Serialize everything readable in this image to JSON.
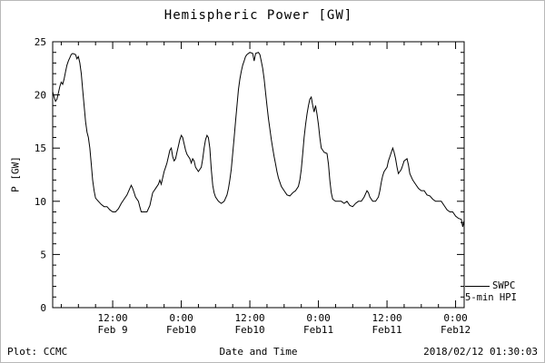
{
  "footer": {
    "left": "Plot: CCMC",
    "right": "2018/02/12 01:30:03"
  },
  "chart_data": {
    "type": "line",
    "title": "Hemispheric Power [GW]",
    "xlabel": "Date and Time",
    "ylabel": "P [GW]",
    "ylim": [
      0,
      25
    ],
    "yticks": [
      0,
      5,
      10,
      15,
      20,
      25
    ],
    "xlim_hours": [
      0,
      72
    ],
    "x_axis_note": "hours since 2018-02-09 01:30",
    "xticks": [
      {
        "hours": 10.5,
        "line1": "12:00",
        "line2": "Feb 9"
      },
      {
        "hours": 22.5,
        "line1": "0:00",
        "line2": "Feb10"
      },
      {
        "hours": 34.5,
        "line1": "12:00",
        "line2": "Feb10"
      },
      {
        "hours": 46.5,
        "line1": "0:00",
        "line2": "Feb11"
      },
      {
        "hours": 58.5,
        "line1": "12:00",
        "line2": "Feb11"
      },
      {
        "hours": 70.5,
        "line1": "0:00",
        "line2": "Feb12"
      }
    ],
    "legend": {
      "line1": "SWPC",
      "line2": "5-min HPI"
    },
    "grid": false,
    "series": [
      {
        "name": "SWPC 5-min HPI",
        "color": "#000000",
        "points": [
          [
            0,
            20.3
          ],
          [
            0.25,
            19.8
          ],
          [
            0.5,
            19.4
          ],
          [
            0.75,
            19.6
          ],
          [
            1,
            20.2
          ],
          [
            1.25,
            20.8
          ],
          [
            1.5,
            21.2
          ],
          [
            1.75,
            21.0
          ],
          [
            2,
            21.5
          ],
          [
            2.25,
            22.2
          ],
          [
            2.5,
            22.8
          ],
          [
            2.75,
            23.2
          ],
          [
            3,
            23.5
          ],
          [
            3.25,
            23.8
          ],
          [
            3.5,
            23.9
          ],
          [
            4,
            23.8
          ],
          [
            4.25,
            23.4
          ],
          [
            4.5,
            23.6
          ],
          [
            4.75,
            23.0
          ],
          [
            5,
            22.0
          ],
          [
            5.25,
            20.5
          ],
          [
            5.5,
            19.0
          ],
          [
            5.75,
            17.5
          ],
          [
            6,
            16.5
          ],
          [
            6.25,
            16.0
          ],
          [
            6.5,
            15.0
          ],
          [
            6.75,
            13.5
          ],
          [
            7,
            12.0
          ],
          [
            7.25,
            11.0
          ],
          [
            7.5,
            10.3
          ],
          [
            8,
            10.0
          ],
          [
            8.5,
            9.7
          ],
          [
            9,
            9.5
          ],
          [
            9.5,
            9.5
          ],
          [
            10,
            9.2
          ],
          [
            10.5,
            9.0
          ],
          [
            11,
            9.0
          ],
          [
            11.5,
            9.3
          ],
          [
            12,
            9.8
          ],
          [
            12.5,
            10.2
          ],
          [
            13,
            10.6
          ],
          [
            13.5,
            11.2
          ],
          [
            13.75,
            11.5
          ],
          [
            14,
            11.2
          ],
          [
            14.25,
            10.8
          ],
          [
            14.5,
            10.4
          ],
          [
            15,
            10.0
          ],
          [
            15.25,
            9.5
          ],
          [
            15.5,
            9.0
          ],
          [
            16,
            9.0
          ],
          [
            16.5,
            9.0
          ],
          [
            17,
            9.6
          ],
          [
            17.25,
            10.2
          ],
          [
            17.5,
            10.8
          ],
          [
            18,
            11.2
          ],
          [
            18.5,
            11.6
          ],
          [
            18.75,
            12.0
          ],
          [
            19,
            11.6
          ],
          [
            19.25,
            12.2
          ],
          [
            19.5,
            12.8
          ],
          [
            19.75,
            13.2
          ],
          [
            20,
            13.6
          ],
          [
            20.25,
            14.2
          ],
          [
            20.5,
            14.8
          ],
          [
            20.75,
            15.0
          ],
          [
            21,
            14.2
          ],
          [
            21.25,
            13.8
          ],
          [
            21.5,
            14.0
          ],
          [
            21.75,
            14.6
          ],
          [
            22,
            15.2
          ],
          [
            22.25,
            15.8
          ],
          [
            22.5,
            16.2
          ],
          [
            22.75,
            16.0
          ],
          [
            23,
            15.4
          ],
          [
            23.25,
            14.8
          ],
          [
            23.5,
            14.4
          ],
          [
            24,
            14.0
          ],
          [
            24.25,
            13.6
          ],
          [
            24.5,
            14.0
          ],
          [
            24.75,
            13.8
          ],
          [
            25,
            13.2
          ],
          [
            25.5,
            12.8
          ],
          [
            26,
            13.2
          ],
          [
            26.25,
            14.0
          ],
          [
            26.5,
            15.0
          ],
          [
            26.75,
            15.8
          ],
          [
            27,
            16.2
          ],
          [
            27.25,
            16.0
          ],
          [
            27.5,
            15.0
          ],
          [
            27.75,
            13.0
          ],
          [
            28,
            11.5
          ],
          [
            28.25,
            10.8
          ],
          [
            28.5,
            10.4
          ],
          [
            29,
            10.0
          ],
          [
            29.5,
            9.8
          ],
          [
            30,
            10.0
          ],
          [
            30.5,
            10.6
          ],
          [
            30.75,
            11.2
          ],
          [
            31,
            12.0
          ],
          [
            31.25,
            13.0
          ],
          [
            31.5,
            14.5
          ],
          [
            31.75,
            16.0
          ],
          [
            32,
            17.5
          ],
          [
            32.25,
            19.0
          ],
          [
            32.5,
            20.5
          ],
          [
            32.75,
            21.5
          ],
          [
            33,
            22.2
          ],
          [
            33.25,
            22.8
          ],
          [
            33.5,
            23.2
          ],
          [
            33.75,
            23.6
          ],
          [
            34,
            23.8
          ],
          [
            34.5,
            24.0
          ],
          [
            35,
            23.9
          ],
          [
            35.25,
            23.2
          ],
          [
            35.5,
            23.9
          ],
          [
            36,
            24.0
          ],
          [
            36.25,
            23.8
          ],
          [
            36.5,
            23.2
          ],
          [
            36.75,
            22.5
          ],
          [
            37,
            21.5
          ],
          [
            37.25,
            20.2
          ],
          [
            37.5,
            19.0
          ],
          [
            37.75,
            17.8
          ],
          [
            38,
            16.8
          ],
          [
            38.25,
            15.8
          ],
          [
            38.5,
            15.0
          ],
          [
            38.75,
            14.2
          ],
          [
            39,
            13.5
          ],
          [
            39.25,
            12.8
          ],
          [
            39.5,
            12.2
          ],
          [
            39.75,
            11.8
          ],
          [
            40,
            11.4
          ],
          [
            40.5,
            11.0
          ],
          [
            41,
            10.6
          ],
          [
            41.5,
            10.5
          ],
          [
            42,
            10.8
          ],
          [
            42.5,
            11.0
          ],
          [
            43,
            11.4
          ],
          [
            43.25,
            12.0
          ],
          [
            43.5,
            13.0
          ],
          [
            43.75,
            14.5
          ],
          [
            44,
            16.0
          ],
          [
            44.25,
            17.2
          ],
          [
            44.5,
            18.2
          ],
          [
            44.75,
            19.0
          ],
          [
            45,
            19.6
          ],
          [
            45.25,
            19.8
          ],
          [
            45.5,
            19.0
          ],
          [
            45.75,
            18.4
          ],
          [
            46,
            19.0
          ],
          [
            46.25,
            18.2
          ],
          [
            46.5,
            17.2
          ],
          [
            46.75,
            16.0
          ],
          [
            47,
            15.0
          ],
          [
            47.25,
            14.8
          ],
          [
            47.5,
            14.6
          ],
          [
            48,
            14.5
          ],
          [
            48.25,
            13.5
          ],
          [
            48.5,
            12.0
          ],
          [
            48.75,
            10.8
          ],
          [
            49,
            10.2
          ],
          [
            49.5,
            10.0
          ],
          [
            50,
            10.0
          ],
          [
            50.5,
            10.0
          ],
          [
            51,
            9.8
          ],
          [
            51.5,
            10.0
          ],
          [
            52,
            9.6
          ],
          [
            52.5,
            9.5
          ],
          [
            53,
            9.8
          ],
          [
            53.5,
            10.0
          ],
          [
            54,
            10.0
          ],
          [
            54.5,
            10.4
          ],
          [
            55,
            11.0
          ],
          [
            55.25,
            10.8
          ],
          [
            55.5,
            10.4
          ],
          [
            56,
            10.0
          ],
          [
            56.5,
            10.0
          ],
          [
            57,
            10.4
          ],
          [
            57.25,
            11.0
          ],
          [
            57.5,
            11.8
          ],
          [
            57.75,
            12.4
          ],
          [
            58,
            12.8
          ],
          [
            58.5,
            13.2
          ],
          [
            58.75,
            13.8
          ],
          [
            59,
            14.2
          ],
          [
            59.25,
            14.6
          ],
          [
            59.5,
            15.0
          ],
          [
            59.75,
            14.6
          ],
          [
            60,
            14.0
          ],
          [
            60.25,
            13.2
          ],
          [
            60.5,
            12.6
          ],
          [
            61,
            13.0
          ],
          [
            61.25,
            13.4
          ],
          [
            61.5,
            13.8
          ],
          [
            62,
            14.0
          ],
          [
            62.25,
            13.4
          ],
          [
            62.5,
            12.6
          ],
          [
            63,
            12.0
          ],
          [
            63.5,
            11.6
          ],
          [
            64,
            11.2
          ],
          [
            64.5,
            11.0
          ],
          [
            65,
            11.0
          ],
          [
            65.5,
            10.6
          ],
          [
            66,
            10.5
          ],
          [
            66.5,
            10.2
          ],
          [
            67,
            10.0
          ],
          [
            67.5,
            10.0
          ],
          [
            68,
            10.0
          ],
          [
            68.5,
            9.6
          ],
          [
            69,
            9.2
          ],
          [
            69.5,
            9.0
          ],
          [
            70,
            9.0
          ],
          [
            70.5,
            8.6
          ],
          [
            71,
            8.4
          ],
          [
            71.5,
            8.3
          ],
          [
            71.75,
            7.6
          ],
          [
            72,
            8.2
          ]
        ]
      }
    ]
  }
}
